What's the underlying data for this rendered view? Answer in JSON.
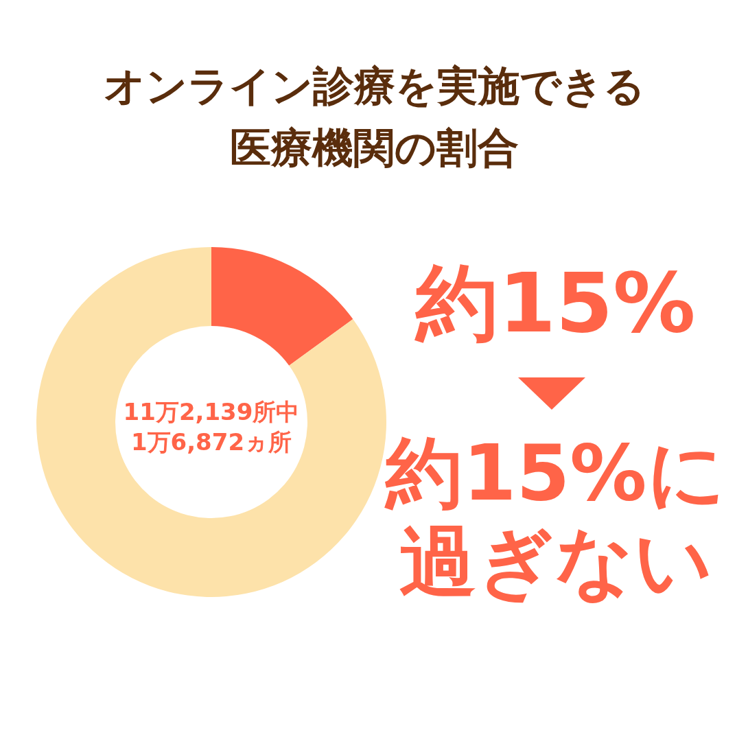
{
  "chart_data": {
    "type": "donut",
    "title": "オンライン診療を実施できる医療機関の割合",
    "categories": [
      null,
      null
    ],
    "values": [
      15,
      85
    ],
    "colors": [
      "#ff6448",
      "#fde2aa"
    ],
    "annotations": [
      "11万2,139所中",
      "1万6,872ヵ所",
      "約15%",
      "約15%に過ぎない"
    ]
  }
}
